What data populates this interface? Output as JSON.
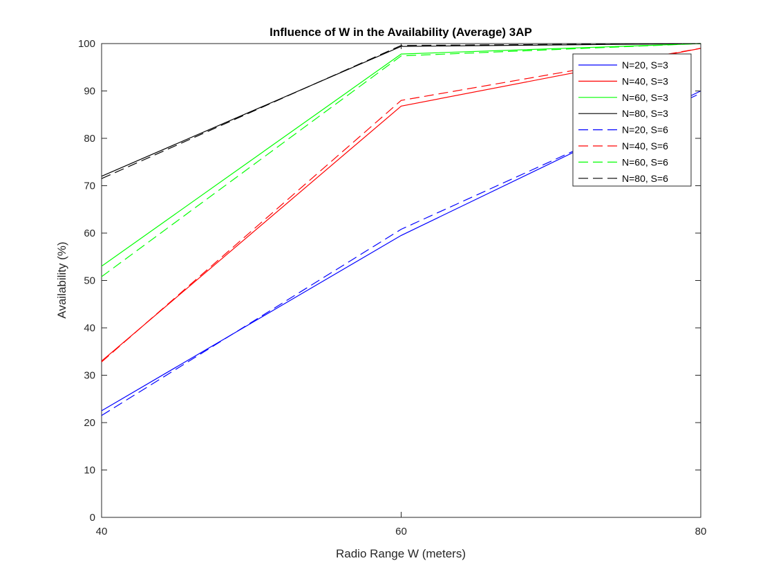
{
  "chart_data": {
    "type": "line",
    "title": "Influence of W in the Availability (Average) 3AP",
    "xlabel": "Radio Range W (meters)",
    "ylabel": "Availability (%)",
    "xlim": [
      40,
      80
    ],
    "ylim": [
      0,
      100
    ],
    "xticks": [
      40,
      60,
      80
    ],
    "yticks": [
      0,
      10,
      20,
      30,
      40,
      50,
      60,
      70,
      80,
      90,
      100
    ],
    "grid": false,
    "legend_position": "top-right",
    "x": [
      40,
      60,
      80
    ],
    "series": [
      {
        "name": "N=20, S=3",
        "color": "#0000ff",
        "dash": "solid",
        "values": [
          22.5,
          59.5,
          90.0
        ]
      },
      {
        "name": "N=40, S=3",
        "color": "#ff0000",
        "dash": "solid",
        "values": [
          33.0,
          86.8,
          99.0
        ]
      },
      {
        "name": "N=60, S=3",
        "color": "#00ff00",
        "dash": "solid",
        "values": [
          53.0,
          97.8,
          100.0
        ]
      },
      {
        "name": "N=80, S=3",
        "color": "#000000",
        "dash": "solid",
        "values": [
          72.0,
          99.4,
          100.0
        ]
      },
      {
        "name": "N=20, S=6",
        "color": "#0000ff",
        "dash": "dashed",
        "values": [
          21.5,
          60.8,
          89.5
        ]
      },
      {
        "name": "N=40, S=6",
        "color": "#ff0000",
        "dash": "dashed",
        "values": [
          32.8,
          88.0,
          99.0
        ]
      },
      {
        "name": "N=60, S=6",
        "color": "#00ff00",
        "dash": "dashed",
        "values": [
          50.8,
          97.4,
          100.0
        ]
      },
      {
        "name": "N=80, S=6",
        "color": "#000000",
        "dash": "dashed",
        "values": [
          71.5,
          99.6,
          100.0
        ]
      }
    ]
  }
}
